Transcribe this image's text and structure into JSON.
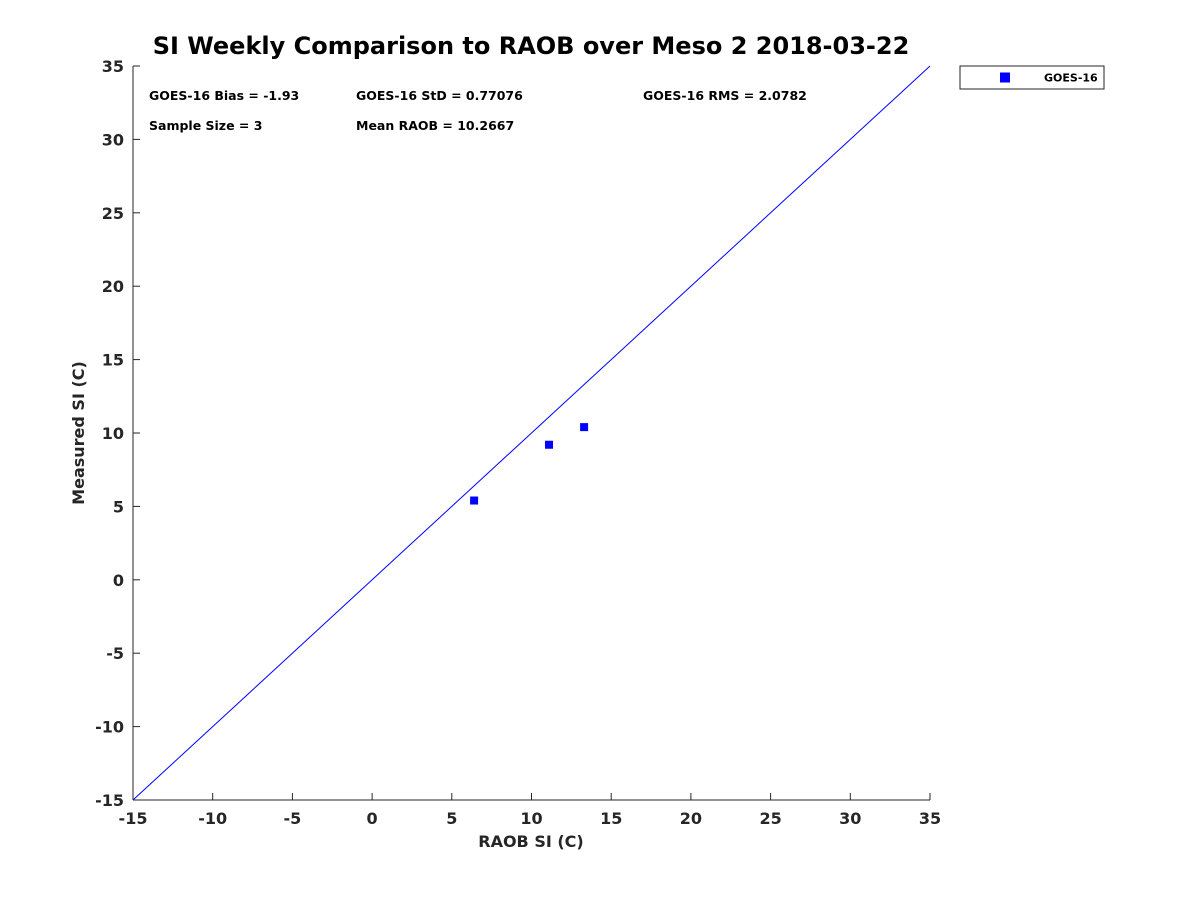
{
  "chart_data": {
    "type": "scatter",
    "title": "SI Weekly Comparison to RAOB over Meso 2 2018-03-22",
    "xlabel": "RAOB SI (C)",
    "ylabel": "Measured SI (C)",
    "xlim": [
      -15,
      35
    ],
    "ylim": [
      -15,
      35
    ],
    "xticks": [
      -15,
      -10,
      -5,
      0,
      5,
      10,
      15,
      20,
      25,
      30,
      35
    ],
    "yticks": [
      -15,
      -10,
      -5,
      0,
      5,
      10,
      15,
      20,
      25,
      30,
      35
    ],
    "grid": false,
    "series": [
      {
        "name": "GOES-16",
        "color": "#0000ff",
        "marker": "square",
        "points": [
          {
            "x": 6.4,
            "y": 5.4
          },
          {
            "x": 11.1,
            "y": 9.2
          },
          {
            "x": 13.3,
            "y": 10.4
          }
        ]
      }
    ],
    "reference_line": {
      "from": [
        -15,
        -15
      ],
      "to": [
        35,
        35
      ],
      "color": "#0000ff"
    },
    "annotations": [
      {
        "id": "bias",
        "text": "GOES-16 Bias = -1.93"
      },
      {
        "id": "std",
        "text": "GOES-16 StD = 0.77076"
      },
      {
        "id": "rms",
        "text": "GOES-16 RMS = 2.0782"
      },
      {
        "id": "sample",
        "text": "Sample Size = 3"
      },
      {
        "id": "mean",
        "text": "Mean RAOB = 10.2667"
      }
    ],
    "legend": {
      "placement": "top-right, outside plot",
      "entries": [
        "GOES-16"
      ]
    }
  }
}
